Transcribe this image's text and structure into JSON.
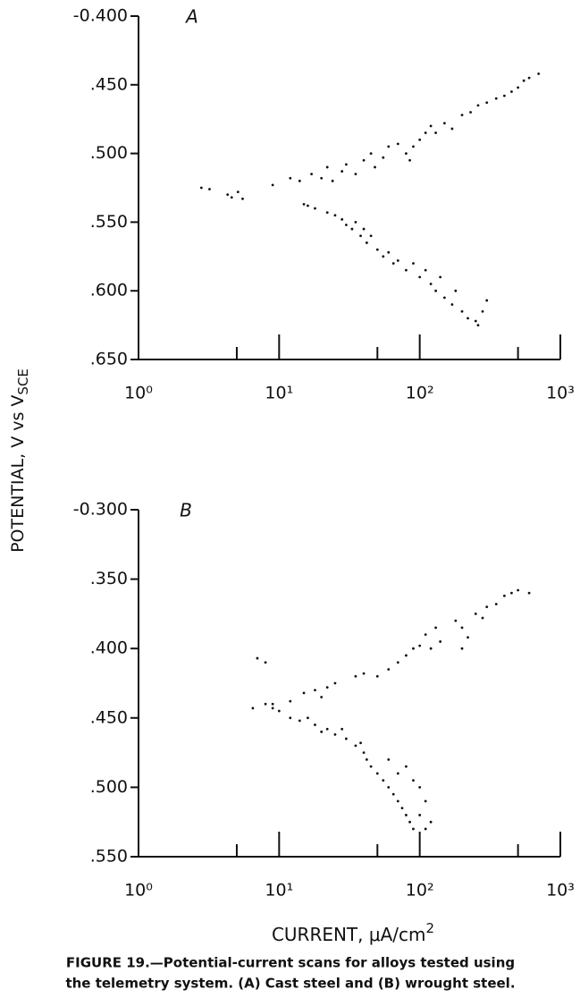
{
  "chart_data": [
    {
      "type": "scatter",
      "panel": "A",
      "log_x": true,
      "xlim": [
        1,
        1000
      ],
      "xticks": [
        {
          "value": 1,
          "label": "10⁰"
        },
        {
          "value": 10,
          "label": "10¹"
        },
        {
          "value": 100,
          "label": "10²"
        },
        {
          "value": 1000,
          "label": "10³"
        }
      ],
      "xminor_ticks": [
        5,
        50,
        500
      ],
      "ylim": [
        -0.65,
        -0.4
      ],
      "yticks": [
        {
          "value": -0.4,
          "label": "-0.400"
        },
        {
          "value": -0.45,
          "label": ".450"
        },
        {
          "value": -0.5,
          "label": ".500"
        },
        {
          "value": -0.55,
          "label": ".550"
        },
        {
          "value": -0.6,
          "label": ".600"
        },
        {
          "value": -0.65,
          "label": ".650"
        }
      ],
      "series": [
        {
          "color": "#111111",
          "x": [
            2.8,
            3.2,
            4.3,
            4.6,
            5.1,
            5.5,
            9,
            12,
            14,
            17,
            20,
            22,
            24,
            28,
            30,
            35,
            40,
            45,
            48,
            55,
            60,
            70,
            80,
            85,
            90,
            100,
            110,
            120,
            130,
            150,
            170,
            200,
            230,
            260,
            300,
            350,
            400,
            450,
            500,
            550,
            600,
            700
          ],
          "values": [
            -0.525,
            -0.526,
            -0.53,
            -0.532,
            -0.528,
            -0.533,
            -0.523,
            -0.518,
            -0.52,
            -0.515,
            -0.518,
            -0.51,
            -0.52,
            -0.513,
            -0.508,
            -0.515,
            -0.505,
            -0.5,
            -0.51,
            -0.503,
            -0.495,
            -0.493,
            -0.5,
            -0.505,
            -0.495,
            -0.49,
            -0.485,
            -0.48,
            -0.485,
            -0.478,
            -0.482,
            -0.472,
            -0.47,
            -0.465,
            -0.463,
            -0.46,
            -0.458,
            -0.455,
            -0.452,
            -0.447,
            -0.445,
            -0.442
          ]
        },
        {
          "color": "#111111",
          "x": [
            15,
            16,
            18,
            22,
            25,
            28,
            30,
            33,
            35,
            38,
            40,
            42,
            45,
            50,
            55,
            60,
            65,
            70,
            80,
            90,
            100,
            110,
            120,
            130,
            140,
            150,
            170,
            180,
            200,
            220,
            250,
            280,
            300,
            260
          ],
          "values": [
            -0.537,
            -0.538,
            -0.54,
            -0.543,
            -0.545,
            -0.548,
            -0.552,
            -0.555,
            -0.55,
            -0.56,
            -0.555,
            -0.565,
            -0.56,
            -0.57,
            -0.575,
            -0.572,
            -0.58,
            -0.578,
            -0.585,
            -0.58,
            -0.59,
            -0.585,
            -0.595,
            -0.6,
            -0.59,
            -0.605,
            -0.61,
            -0.6,
            -0.615,
            -0.62,
            -0.622,
            -0.615,
            -0.607,
            -0.625
          ]
        }
      ]
    },
    {
      "type": "scatter",
      "panel": "B",
      "log_x": true,
      "xlim": [
        1,
        1000
      ],
      "xticks": [
        {
          "value": 1,
          "label": "10⁰"
        },
        {
          "value": 10,
          "label": "10¹"
        },
        {
          "value": 100,
          "label": "10²"
        },
        {
          "value": 1000,
          "label": "10³"
        }
      ],
      "xminor_ticks": [
        5,
        50,
        500
      ],
      "ylim": [
        -0.55,
        -0.3
      ],
      "yticks": [
        {
          "value": -0.3,
          "label": "-0.300"
        },
        {
          "value": -0.35,
          "label": ".350"
        },
        {
          "value": -0.4,
          "label": ".400"
        },
        {
          "value": -0.45,
          "label": ".450"
        },
        {
          "value": -0.5,
          "label": ".500"
        },
        {
          "value": -0.55,
          "label": ".550"
        }
      ],
      "series": [
        {
          "color": "#111111",
          "x": [
            7,
            8,
            9,
            12,
            15,
            18,
            20,
            22,
            25,
            35,
            40,
            50,
            60,
            70,
            80,
            90,
            100,
            110,
            120,
            130,
            140,
            180,
            200,
            200,
            220,
            250,
            280,
            300,
            350,
            400,
            450,
            500,
            600
          ],
          "values": [
            -0.407,
            -0.41,
            -0.44,
            -0.438,
            -0.432,
            -0.43,
            -0.435,
            -0.428,
            -0.425,
            -0.42,
            -0.418,
            -0.42,
            -0.415,
            -0.41,
            -0.405,
            -0.4,
            -0.398,
            -0.39,
            -0.4,
            -0.385,
            -0.395,
            -0.38,
            -0.385,
            -0.4,
            -0.392,
            -0.375,
            -0.378,
            -0.37,
            -0.368,
            -0.362,
            -0.36,
            -0.358,
            -0.36
          ]
        },
        {
          "color": "#111111",
          "x": [
            6.5,
            8,
            9,
            10,
            12,
            14,
            16,
            18,
            20,
            22,
            25,
            28,
            30,
            35,
            38,
            40,
            42,
            45,
            50,
            55,
            60,
            65,
            70,
            75,
            80,
            85,
            90,
            100,
            110,
            120,
            70,
            80,
            60,
            90,
            100,
            110
          ],
          "values": [
            -0.443,
            -0.44,
            -0.443,
            -0.445,
            -0.45,
            -0.452,
            -0.45,
            -0.455,
            -0.46,
            -0.458,
            -0.462,
            -0.458,
            -0.465,
            -0.47,
            -0.468,
            -0.475,
            -0.48,
            -0.485,
            -0.49,
            -0.495,
            -0.5,
            -0.505,
            -0.51,
            -0.515,
            -0.52,
            -0.525,
            -0.53,
            -0.52,
            -0.51,
            -0.525,
            -0.49,
            -0.485,
            -0.48,
            -0.495,
            -0.5,
            -0.53
          ]
        }
      ]
    }
  ],
  "ylabel": {
    "text": "POTENTIAL, V vs V",
    "subscript": "SCE"
  },
  "xlabel": {
    "text": "CURRENT, μA/cm",
    "superscript": "2"
  },
  "caption": [
    "FIGURE 19.—Potential-current scans for alloys tested using",
    "the telemetry system. (A) Cast steel and (B) wrought steel."
  ]
}
